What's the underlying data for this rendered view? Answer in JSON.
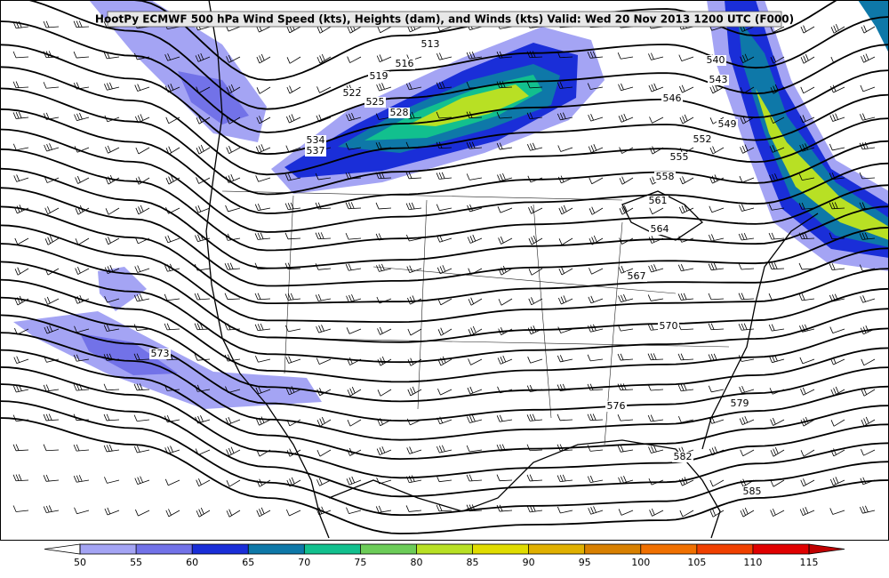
{
  "title": "HootPy ECMWF 500 hPa Wind Speed (kts), Heights (dam), and Winds (kts) Valid: Wed 20 Nov 2013 1200 UTC (F000)",
  "height_labels": [
    513,
    516,
    519,
    522,
    525,
    528,
    534,
    537,
    540,
    543,
    546,
    549,
    552,
    555,
    558,
    561,
    564,
    567,
    570,
    573,
    576,
    579,
    582,
    585
  ],
  "colorbar": {
    "ticks": [
      50,
      55,
      60,
      65,
      70,
      75,
      80,
      85,
      90,
      95,
      100,
      105,
      110,
      115
    ],
    "colors": [
      "#a4a4f4",
      "#7272e8",
      "#1a2ed8",
      "#0e78a8",
      "#12c08e",
      "#6ccc58",
      "#b8e024",
      "#e0dc00",
      "#e0b000",
      "#d88000",
      "#f07000",
      "#f04000",
      "#e00000"
    ],
    "under_color": "#ffffff",
    "over_color": "#c00000"
  }
}
